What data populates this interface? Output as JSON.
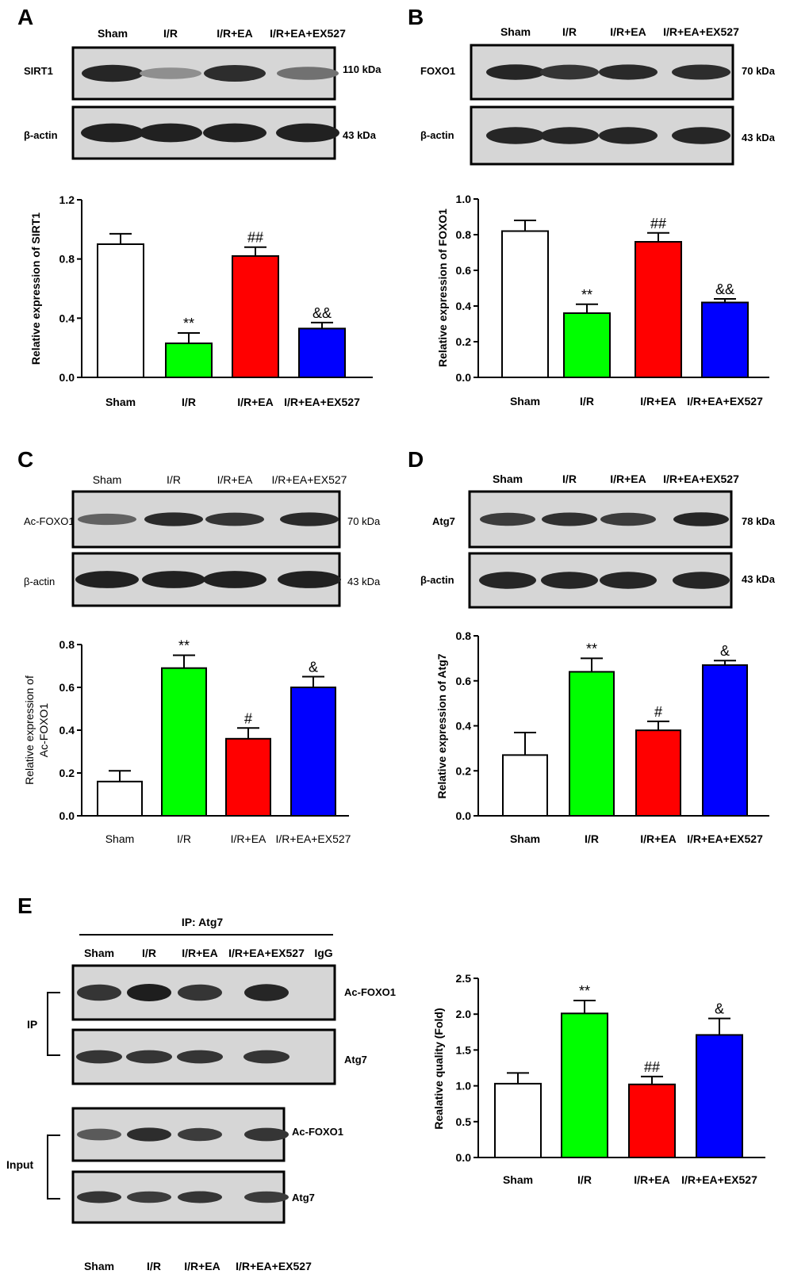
{
  "colors": {
    "sham": "#ffffff",
    "ir": "#00ff00",
    "ir_ea": "#ff0000",
    "ir_ea_ex527": "#0000ff",
    "ink": "#000000",
    "blot_bg": "#d6d6d6"
  },
  "panels": {
    "A": {
      "letter": "A",
      "lanes": [
        "Sham",
        "I/R",
        "I/R+EA",
        "I/R+EA+EX527"
      ],
      "blots": [
        {
          "label": "SIRT1",
          "size": "110 kDa",
          "intensities": [
            0.95,
            0.25,
            0.9,
            0.45
          ]
        },
        {
          "label": "β-actin",
          "size": "43 kDa",
          "intensities": [
            0.98,
            0.98,
            0.98,
            0.98
          ]
        }
      ]
    },
    "B": {
      "letter": "B",
      "lanes": [
        "Sham",
        "I/R",
        "I/R+EA",
        "I/R+EA+EX527"
      ],
      "blots": [
        {
          "label": "FOXO1",
          "size": "70 kDa",
          "intensities": [
            0.95,
            0.85,
            0.92,
            0.9
          ]
        },
        {
          "label": "β-actin",
          "size": "43 kDa",
          "intensities": [
            0.95,
            0.95,
            0.95,
            0.95
          ]
        }
      ]
    },
    "C": {
      "letter": "C",
      "lanes": [
        "Sham",
        "I/R",
        "I/R+EA",
        "I/R+EA+EX527"
      ],
      "blots": [
        {
          "label": "Ac-FOXO1",
          "size": "70 kDa",
          "intensities": [
            0.55,
            0.92,
            0.85,
            0.92
          ]
        },
        {
          "label": "β-actin",
          "size": "43 kDa",
          "intensities": [
            0.98,
            0.98,
            0.98,
            0.98
          ]
        }
      ]
    },
    "D": {
      "letter": "D",
      "lanes": [
        "Sham",
        "I/R",
        "I/R+EA",
        "I/R+EA+EX527"
      ],
      "blots": [
        {
          "label": "Atg7",
          "size": "78 kDa",
          "intensities": [
            0.8,
            0.88,
            0.8,
            0.95
          ]
        },
        {
          "label": "β-actin",
          "size": "43 kDa",
          "intensities": [
            0.95,
            0.95,
            0.95,
            0.95
          ]
        }
      ]
    },
    "E": {
      "letter": "E",
      "ip_header": "IP: Atg7",
      "lanes": [
        "Sham",
        "I/R",
        "I/R+EA",
        "I/R+EA+EX527",
        "IgG"
      ],
      "bottom_lanes": [
        "Sham",
        "I/R",
        "I/R+EA",
        "I/R+EA+EX527"
      ],
      "ip_label": "IP",
      "input_label": "Input",
      "blots": [
        {
          "label": "Ac-FOXO1",
          "group": "IP",
          "intensities": [
            0.85,
            1.0,
            0.85,
            0.95,
            0
          ]
        },
        {
          "label": "Atg7",
          "group": "IP",
          "intensities": [
            0.85,
            0.85,
            0.85,
            0.85,
            0
          ]
        },
        {
          "label": "Ac-FOXO1",
          "group": "Input",
          "intensities": [
            0.6,
            0.9,
            0.8,
            0.85
          ]
        },
        {
          "label": "Atg7",
          "group": "Input",
          "intensities": [
            0.85,
            0.8,
            0.85,
            0.8
          ]
        }
      ]
    }
  },
  "chart_data": [
    {
      "panel": "A",
      "type": "bar",
      "categories": [
        "Sham",
        "I/R",
        "I/R+EA",
        "I/R+EA+EX527"
      ],
      "values": [
        0.9,
        0.23,
        0.82,
        0.33
      ],
      "errors": [
        0.07,
        0.07,
        0.06,
        0.04
      ],
      "annotations": [
        "",
        "**",
        "##",
        "&&"
      ],
      "ylabel": "Relative expression of SIRT1",
      "ylim": [
        0,
        1.2
      ],
      "yticks": [
        "0.0",
        "0.4",
        "0.8",
        "1.2"
      ]
    },
    {
      "panel": "B",
      "type": "bar",
      "categories": [
        "Sham",
        "I/R",
        "I/R+EA",
        "I/R+EA+EX527"
      ],
      "values": [
        0.82,
        0.36,
        0.76,
        0.42
      ],
      "errors": [
        0.06,
        0.05,
        0.05,
        0.02
      ],
      "annotations": [
        "",
        "**",
        "##",
        "&&"
      ],
      "ylabel": "Relative expression of FOXO1",
      "ylim": [
        0,
        1.0
      ],
      "yticks": [
        "0.0",
        "0.2",
        "0.4",
        "0.6",
        "0.8",
        "1.0"
      ]
    },
    {
      "panel": "C",
      "type": "bar",
      "categories": [
        "Sham",
        "I/R",
        "I/R+EA",
        "I/R+EA+EX527"
      ],
      "values": [
        0.16,
        0.69,
        0.36,
        0.6
      ],
      "errors": [
        0.05,
        0.06,
        0.05,
        0.05
      ],
      "annotations": [
        "",
        "**",
        "#",
        "&"
      ],
      "ylabel": "Relative expression of",
      "ylabel2": "Ac-FOXO1",
      "ylim": [
        0,
        0.8
      ],
      "yticks": [
        "0.0",
        "0.2",
        "0.4",
        "0.6",
        "0.8"
      ]
    },
    {
      "panel": "D",
      "type": "bar",
      "categories": [
        "Sham",
        "I/R",
        "I/R+EA",
        "I/R+EA+EX527"
      ],
      "values": [
        0.27,
        0.64,
        0.38,
        0.67
      ],
      "errors": [
        0.1,
        0.06,
        0.04,
        0.02
      ],
      "annotations": [
        "",
        "**",
        "#",
        "&"
      ],
      "ylabel": "Relative expression of Atg7",
      "ylim": [
        0,
        0.8
      ],
      "yticks": [
        "0.0",
        "0.2",
        "0.4",
        "0.6",
        "0.8"
      ]
    },
    {
      "panel": "E",
      "type": "bar",
      "categories": [
        "Sham",
        "I/R",
        "I/R+EA",
        "I/R+EA+EX527"
      ],
      "values": [
        1.03,
        2.01,
        1.02,
        1.71
      ],
      "errors": [
        0.15,
        0.18,
        0.11,
        0.23
      ],
      "annotations": [
        "",
        "**",
        "##",
        "&"
      ],
      "ylabel": "Realative  quality (Fold)",
      "ylim": [
        0,
        2.5
      ],
      "yticks": [
        "0.0",
        "0.5",
        "1.0",
        "1.5",
        "2.0",
        "2.5"
      ]
    }
  ]
}
